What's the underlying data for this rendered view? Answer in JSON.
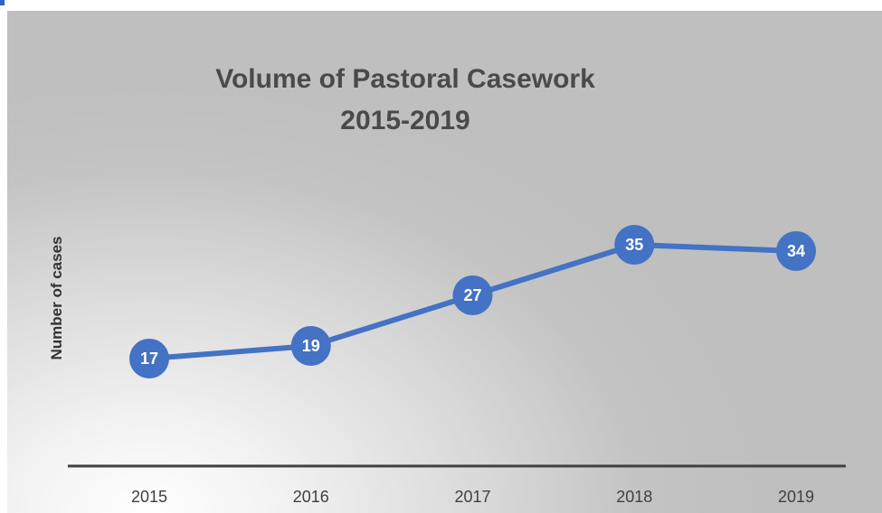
{
  "chart_data": {
    "type": "line",
    "title": [
      "Volume of Pastoral Casework",
      "2015-2019"
    ],
    "xlabel": "",
    "ylabel": "Number of cases",
    "categories": [
      "2015",
      "2016",
      "2017",
      "2018",
      "2019"
    ],
    "series": [
      {
        "values": [
          17,
          19,
          27,
          35,
          34
        ],
        "color": "#4472c4"
      }
    ],
    "ylim": [
      0,
      50
    ],
    "grid": false,
    "legend": "none",
    "data_labels": true,
    "marker": "circle"
  },
  "colors": {
    "accent": "#2e63c4",
    "series": "#4472c4",
    "axis": "#404040"
  }
}
